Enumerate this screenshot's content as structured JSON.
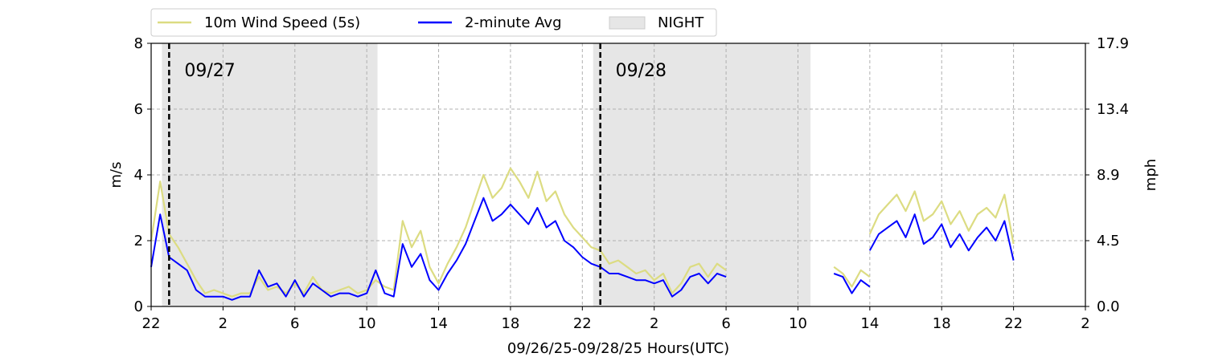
{
  "chart_data": {
    "type": "line",
    "xlabel": "09/26/25-09/28/25  Hours(UTC)",
    "ylabel_left": "m/s",
    "ylabel_right": "mph",
    "x_ticks": [
      {
        "hour": 22,
        "label": "22"
      },
      {
        "hour": 26,
        "label": "2"
      },
      {
        "hour": 30,
        "label": "6"
      },
      {
        "hour": 34,
        "label": "10"
      },
      {
        "hour": 38,
        "label": "14"
      },
      {
        "hour": 42,
        "label": "18"
      },
      {
        "hour": 46,
        "label": "22"
      },
      {
        "hour": 50,
        "label": "2"
      },
      {
        "hour": 54,
        "label": "6"
      },
      {
        "hour": 58,
        "label": "10"
      },
      {
        "hour": 62,
        "label": "14"
      },
      {
        "hour": 66,
        "label": "18"
      },
      {
        "hour": 70,
        "label": "22"
      },
      {
        "hour": 74,
        "label": "2"
      }
    ],
    "xlim": [
      22,
      74
    ],
    "ylim": [
      0,
      8
    ],
    "y_ticks_left": [
      "0",
      "2",
      "4",
      "6",
      "8"
    ],
    "y_ticks_right": [
      "0.0",
      "4.5",
      "8.9",
      "13.4",
      "17.9"
    ],
    "grid": true,
    "legend_position": "top-left, above plot",
    "legend": [
      {
        "label": "10m Wind Speed (5s)",
        "kind": "line",
        "color": "#dcdc82"
      },
      {
        "label": "2-minute Avg",
        "kind": "line",
        "color": "#0000ff"
      },
      {
        "label": "NIGHT",
        "kind": "patch",
        "color": "#e6e6e6"
      }
    ],
    "night_periods": [
      [
        22.6,
        34.6
      ],
      [
        46.6,
        58.7
      ]
    ],
    "midnights": [
      {
        "hour": 23.0,
        "label": "09/27"
      },
      {
        "hour": 47.0,
        "label": "09/28"
      }
    ],
    "series": [
      {
        "name": "10m Wind Speed (5s)",
        "color": "#dcdc82",
        "segments": [
          {
            "x": [
              22.0,
              22.5,
              23.0,
              23.5,
              24.0,
              24.5,
              25.0,
              25.5,
              26.0,
              26.5,
              27.0,
              27.5,
              28.0,
              28.5,
              29.0,
              29.5,
              30.0,
              30.5,
              31.0,
              31.5,
              32.0,
              32.5,
              33.0,
              33.5,
              34.0,
              34.5,
              35.0,
              35.5,
              36.0,
              36.5,
              37.0,
              37.5,
              38.0,
              38.5,
              39.0,
              39.5,
              40.0,
              40.5,
              41.0,
              41.5,
              42.0,
              42.5,
              43.0,
              43.5,
              44.0,
              44.5,
              45.0,
              45.5,
              46.0,
              46.5,
              47.0,
              47.5,
              48.0,
              48.5,
              49.0,
              49.5,
              50.0,
              50.5,
              51.0,
              51.5,
              52.0,
              52.5,
              53.0,
              53.5,
              54.0
            ],
            "y": [
              2.0,
              3.8,
              2.2,
              1.8,
              1.3,
              0.8,
              0.4,
              0.5,
              0.4,
              0.3,
              0.4,
              0.4,
              0.9,
              0.5,
              0.6,
              0.4,
              0.7,
              0.4,
              0.9,
              0.5,
              0.4,
              0.5,
              0.6,
              0.4,
              0.5,
              0.8,
              0.6,
              0.5,
              2.6,
              1.8,
              2.3,
              1.2,
              0.7,
              1.3,
              1.8,
              2.4,
              3.2,
              4.0,
              3.3,
              3.6,
              4.2,
              3.8,
              3.3,
              4.1,
              3.2,
              3.5,
              2.8,
              2.4,
              2.1,
              1.8,
              1.7,
              1.3,
              1.4,
              1.2,
              1.0,
              1.1,
              0.8,
              1.0,
              0.4,
              0.7,
              1.2,
              1.3,
              0.9,
              1.3,
              1.1
            ]
          },
          {
            "x": [
              60.0,
              60.5,
              61.0,
              61.5,
              62.0
            ],
            "y": [
              1.2,
              1.0,
              0.6,
              1.1,
              0.9
            ]
          },
          {
            "x": [
              62.0,
              62.5,
              63.0,
              63.5,
              64.0,
              64.5,
              65.0,
              65.5,
              66.0,
              66.5,
              67.0,
              67.5,
              68.0,
              68.5,
              69.0,
              69.5,
              70.0
            ],
            "y": [
              2.2,
              2.8,
              3.1,
              3.4,
              2.9,
              3.5,
              2.6,
              2.8,
              3.2,
              2.5,
              2.9,
              2.3,
              2.8,
              3.0,
              2.7,
              3.4,
              1.9
            ]
          }
        ]
      },
      {
        "name": "2-minute Avg",
        "color": "#0000ff",
        "segments": [
          {
            "x": [
              22.0,
              22.5,
              23.0,
              23.5,
              24.0,
              24.5,
              25.0,
              25.5,
              26.0,
              26.5,
              27.0,
              27.5,
              28.0,
              28.5,
              29.0,
              29.5,
              30.0,
              30.5,
              31.0,
              31.5,
              32.0,
              32.5,
              33.0,
              33.5,
              34.0,
              34.5,
              35.0,
              35.5,
              36.0,
              36.5,
              37.0,
              37.5,
              38.0,
              38.5,
              39.0,
              39.5,
              40.0,
              40.5,
              41.0,
              41.5,
              42.0,
              42.5,
              43.0,
              43.5,
              44.0,
              44.5,
              45.0,
              45.5,
              46.0,
              46.5,
              47.0,
              47.5,
              48.0,
              48.5,
              49.0,
              49.5,
              50.0,
              50.5,
              51.0,
              51.5,
              52.0,
              52.5,
              53.0,
              53.5,
              54.0
            ],
            "y": [
              1.2,
              2.8,
              1.5,
              1.3,
              1.1,
              0.5,
              0.3,
              0.3,
              0.3,
              0.2,
              0.3,
              0.3,
              1.1,
              0.6,
              0.7,
              0.3,
              0.8,
              0.3,
              0.7,
              0.5,
              0.3,
              0.4,
              0.4,
              0.3,
              0.4,
              1.1,
              0.4,
              0.3,
              1.9,
              1.2,
              1.6,
              0.8,
              0.5,
              1.0,
              1.4,
              1.9,
              2.6,
              3.3,
              2.6,
              2.8,
              3.1,
              2.8,
              2.5,
              3.0,
              2.4,
              2.6,
              2.0,
              1.8,
              1.5,
              1.3,
              1.2,
              1.0,
              1.0,
              0.9,
              0.8,
              0.8,
              0.7,
              0.8,
              0.3,
              0.5,
              0.9,
              1.0,
              0.7,
              1.0,
              0.9
            ]
          },
          {
            "x": [
              60.0,
              60.5,
              61.0,
              61.5,
              62.0
            ],
            "y": [
              1.0,
              0.9,
              0.4,
              0.8,
              0.6
            ]
          },
          {
            "x": [
              62.0,
              62.5,
              63.0,
              63.5,
              64.0,
              64.5,
              65.0,
              65.5,
              66.0,
              66.5,
              67.0,
              67.5,
              68.0,
              68.5,
              69.0,
              69.5,
              70.0
            ],
            "y": [
              1.7,
              2.2,
              2.4,
              2.6,
              2.1,
              2.8,
              1.9,
              2.1,
              2.5,
              1.8,
              2.2,
              1.7,
              2.1,
              2.4,
              2.0,
              2.6,
              1.4
            ]
          }
        ]
      }
    ]
  }
}
